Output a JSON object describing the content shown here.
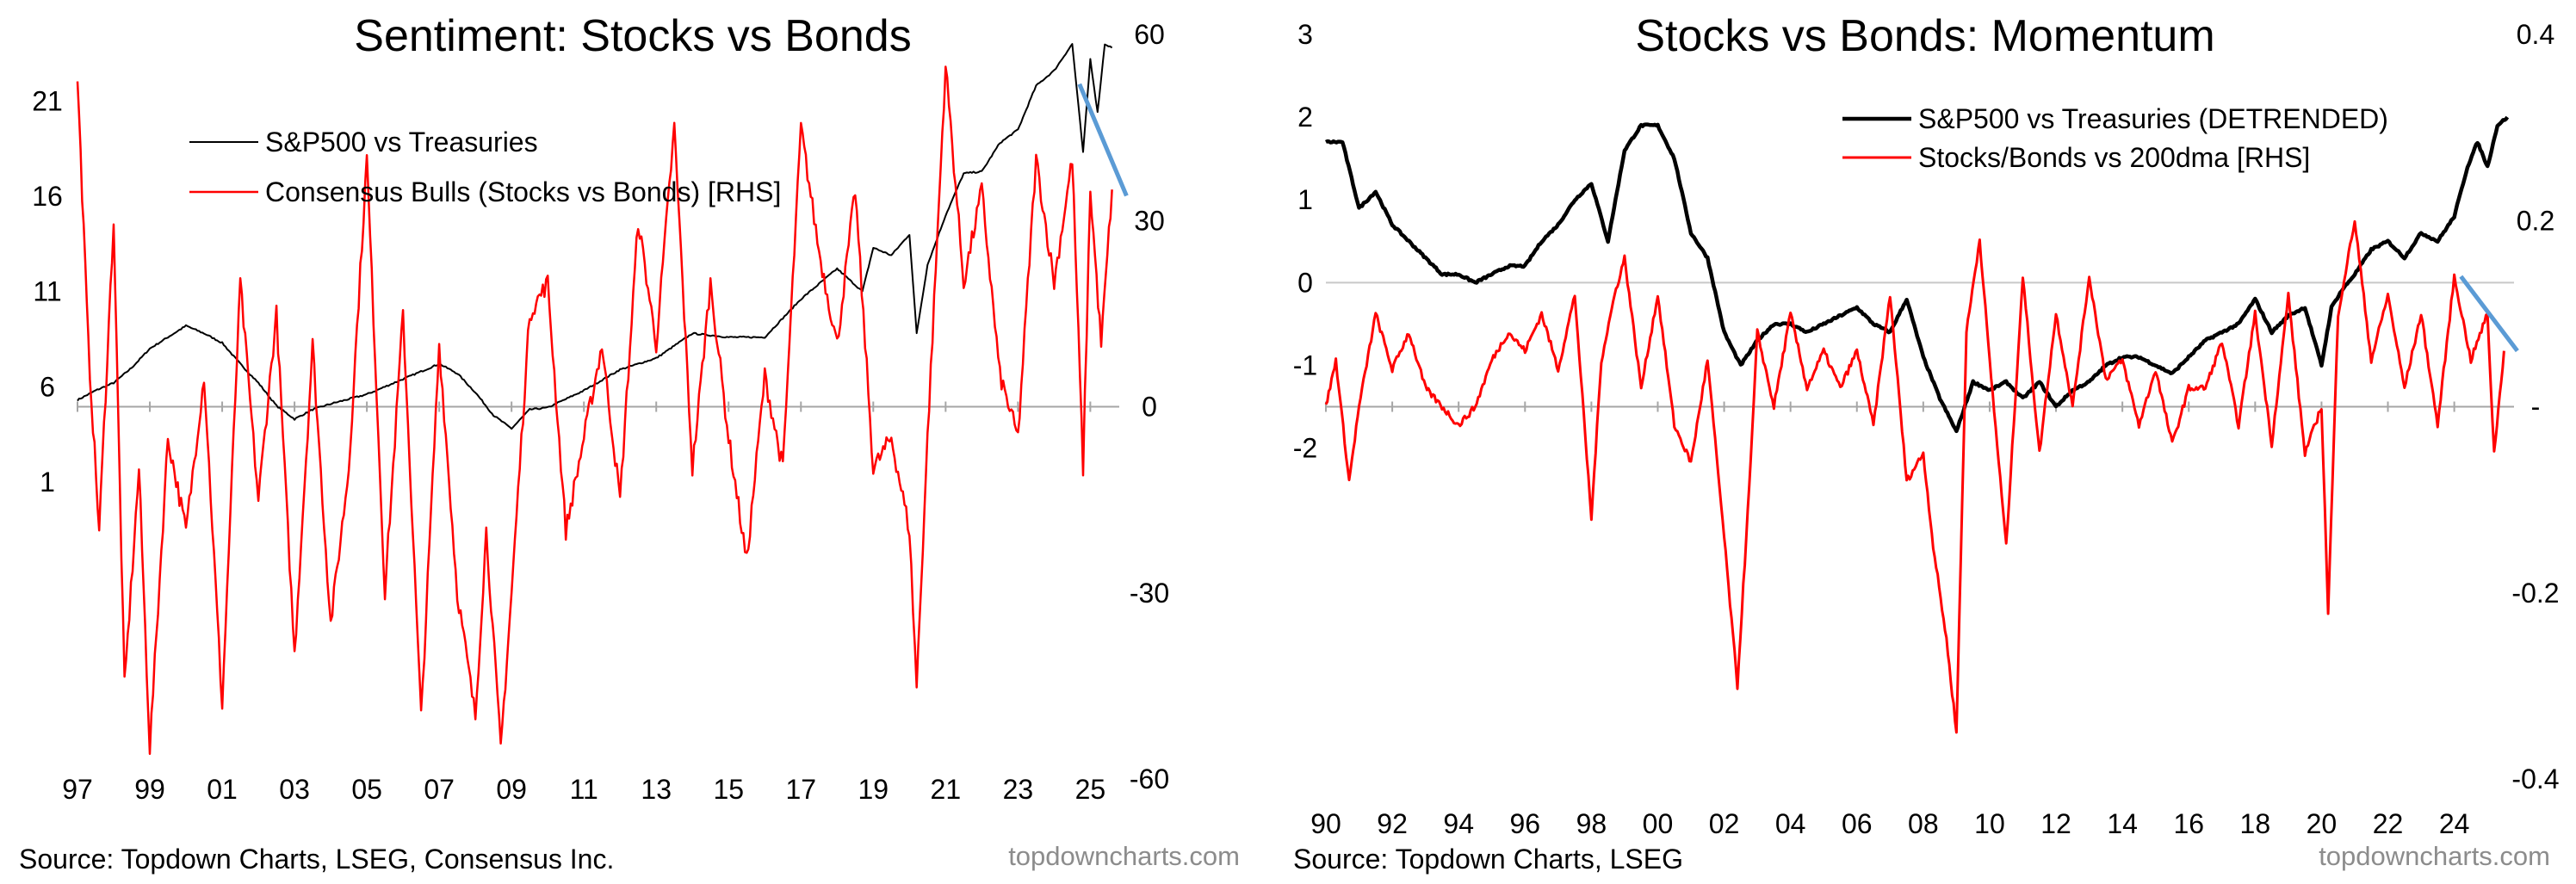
{
  "chart_data": [
    {
      "type": "line",
      "title": "Sentiment: Stocks vs Bonds",
      "source": "Source: Topdown Charts, LSEG, Consensus Inc.",
      "brand": "topdowncharts.com",
      "x_ticks": [
        "97",
        "99",
        "01",
        "03",
        "05",
        "07",
        "09",
        "11",
        "13",
        "15",
        "17",
        "19",
        "21",
        "23",
        "25"
      ],
      "xlim": [
        1997,
        2025.8
      ],
      "left_axis": {
        "ticks": [
          "21",
          "16",
          "11",
          "6",
          "1"
        ],
        "values": [
          21,
          16,
          11,
          6,
          1
        ],
        "ylim": [
          -14.6,
          24.5
        ]
      },
      "right_axis": {
        "ticks": [
          "60",
          "30",
          "0",
          "-30",
          "-60"
        ],
        "values": [
          60,
          30,
          0,
          -30,
          -60
        ],
        "ylim": [
          -60,
          60
        ],
        "zero_line": true
      },
      "legend": {
        "placement": "top-left"
      },
      "series": [
        {
          "name": "S&P500 vs Treasuries",
          "axis": "left",
          "color": "#000000",
          "kind": "level",
          "x": [
            1997,
            1997.5,
            1998,
            1998.5,
            1999,
            1999.5,
            2000,
            2000.5,
            2001,
            2001.5,
            2002,
            2002.5,
            2003,
            2003.5,
            2004,
            2005,
            2006,
            2007,
            2007.5,
            2008,
            2008.5,
            2009,
            2009.5,
            2010,
            2011,
            2012,
            2013,
            2014,
            2015,
            2016,
            2016.5,
            2017,
            2018,
            2018.7,
            2019,
            2019.5,
            2020,
            2020.2,
            2020.5,
            2021,
            2021.5,
            2022,
            2022.5,
            2023,
            2023.5,
            2024,
            2024.5,
            2024.8,
            2025,
            2025.2,
            2025.4,
            2025.6
          ],
          "y": [
            5.3,
            5.8,
            6.2,
            7.0,
            8.0,
            8.6,
            9.2,
            8.8,
            8.3,
            7.2,
            6.2,
            5.0,
            4.3,
            4.8,
            5.1,
            5.6,
            6.4,
            7.2,
            6.7,
            5.7,
            4.5,
            3.8,
            4.8,
            4.9,
            5.8,
            6.9,
            7.5,
            8.8,
            8.6,
            8.6,
            9.6,
            10.6,
            12.2,
            11.0,
            13.3,
            12.9,
            14.0,
            8.8,
            12.4,
            15.0,
            17.2,
            17.3,
            18.8,
            19.5,
            21.8,
            22.6,
            24.0,
            18.3,
            23.2,
            20.4,
            24.0,
            23.8
          ]
        },
        {
          "name": "Consensus Bulls (Stocks vs Bonds) [RHS]",
          "axis": "right",
          "color": "#ff0000",
          "kind": "oscillator",
          "x": [
            1997,
            1997.3,
            1997.6,
            1998,
            1998.3,
            1998.7,
            1999,
            1999.5,
            2000,
            2000.5,
            2001,
            2001.5,
            2002,
            2002.5,
            2003,
            2003.5,
            2004,
            2004.5,
            2005,
            2005.5,
            2006,
            2006.5,
            2007,
            2007.5,
            2008,
            2008.3,
            2008.7,
            2009,
            2009.5,
            2010,
            2010.5,
            2011,
            2011.5,
            2012,
            2012.5,
            2013,
            2013.5,
            2014,
            2014.5,
            2015,
            2015.5,
            2016,
            2016.5,
            2017,
            2017.5,
            2018,
            2018.5,
            2019,
            2019.5,
            2020,
            2020.2,
            2020.5,
            2021,
            2021.5,
            2022,
            2022.5,
            2023,
            2023.5,
            2024,
            2024.5,
            2024.8,
            2025,
            2025.3,
            2025.6
          ],
          "y": [
            53,
            10,
            -20,
            30,
            -45,
            -10,
            -55,
            -5,
            -20,
            5,
            -48,
            20,
            -15,
            15,
            -40,
            10,
            -35,
            -10,
            40,
            -30,
            15,
            -50,
            10,
            -30,
            -50,
            -20,
            -55,
            -30,
            15,
            20,
            -20,
            -5,
            10,
            -15,
            30,
            10,
            45,
            -10,
            20,
            -5,
            -25,
            5,
            -10,
            45,
            25,
            10,
            35,
            -10,
            -5,
            -20,
            -45,
            -5,
            55,
            20,
            35,
            5,
            -5,
            40,
            20,
            40,
            -10,
            35,
            10,
            35
          ]
        }
      ],
      "annotations": [
        {
          "type": "trend-line",
          "color": "#5b9bd5",
          "x": [
            2024.7,
            2026.0
          ],
          "y": [
            52,
            34
          ],
          "axis": "right"
        }
      ]
    },
    {
      "type": "line",
      "title": "Stocks vs Bonds: Momentum",
      "source": "Source: Topdown Charts, LSEG",
      "brand": "topdowncharts.com",
      "x_ticks": [
        "90",
        "92",
        "94",
        "96",
        "98",
        "00",
        "02",
        "04",
        "06",
        "08",
        "10",
        "12",
        "14",
        "16",
        "18",
        "20",
        "22",
        "24"
      ],
      "xlim": [
        1990,
        2025.8
      ],
      "left_axis": {
        "ticks": [
          "3",
          "2",
          "1",
          "0",
          "-1",
          "-2"
        ],
        "values": [
          3,
          2,
          1,
          0,
          -1,
          -2
        ],
        "ylim": [
          -6.0,
          3.0
        ]
      },
      "right_axis": {
        "ticks": [
          "0.4",
          "0.2",
          "-",
          "-0.2",
          "-0.4"
        ],
        "values": [
          0.4,
          0.2,
          0,
          -0.2,
          -0.4
        ],
        "ylim": [
          -0.4,
          0.4
        ],
        "zero_line": true
      },
      "left_zero_line": true,
      "legend": {
        "placement": "top-right"
      },
      "series": [
        {
          "name": "S&P500 vs Treasuries (DETRENDED)",
          "axis": "left",
          "color": "#000000",
          "kind": "level",
          "x": [
            1990,
            1990.5,
            1991,
            1991.5,
            1992,
            1992.5,
            1993,
            1993.5,
            1994,
            1994.5,
            1995,
            1995.5,
            1996,
            1996.5,
            1997,
            1997.5,
            1998,
            1998.5,
            1999,
            1999.5,
            2000,
            2000.5,
            2001,
            2001.5,
            2002,
            2002.5,
            2003,
            2003.5,
            2004,
            2004.5,
            2005,
            2005.5,
            2006,
            2006.5,
            2007,
            2007.5,
            2008,
            2008.5,
            2009,
            2009.5,
            2010,
            2010.5,
            2011,
            2011.5,
            2012,
            2012.5,
            2013,
            2013.5,
            2014,
            2014.5,
            2015,
            2015.5,
            2016,
            2016.5,
            2017,
            2017.5,
            2018,
            2018.5,
            2019,
            2019.5,
            2020,
            2020.3,
            2020.6,
            2021,
            2021.5,
            2022,
            2022.5,
            2023,
            2023.5,
            2024,
            2024.4,
            2024.7,
            2025,
            2025.3,
            2025.6
          ],
          "y": [
            1.7,
            1.7,
            0.9,
            1.1,
            0.7,
            0.5,
            0.3,
            0.1,
            0.1,
            0.0,
            0.1,
            0.2,
            0.2,
            0.5,
            0.7,
            1.0,
            1.2,
            0.5,
            1.6,
            1.9,
            1.9,
            1.5,
            0.6,
            0.3,
            -0.6,
            -1.0,
            -0.7,
            -0.5,
            -0.5,
            -0.6,
            -0.5,
            -0.4,
            -0.3,
            -0.5,
            -0.6,
            -0.2,
            -0.9,
            -1.4,
            -1.8,
            -1.2,
            -1.3,
            -1.2,
            -1.4,
            -1.2,
            -1.5,
            -1.3,
            -1.2,
            -1.0,
            -0.9,
            -0.9,
            -1.0,
            -1.1,
            -0.9,
            -0.7,
            -0.6,
            -0.5,
            -0.2,
            -0.6,
            -0.4,
            -0.3,
            -1.0,
            -0.3,
            -0.1,
            0.1,
            0.4,
            0.5,
            0.3,
            0.6,
            0.5,
            0.8,
            1.4,
            1.7,
            1.4,
            1.9,
            2.0
          ]
        },
        {
          "name": "Stocks/Bonds vs 200dma [RHS]",
          "axis": "right",
          "color": "#ff0000",
          "kind": "oscillator",
          "x": [
            1990,
            1990.3,
            1990.7,
            1991,
            1991.5,
            1992,
            1992.5,
            1993,
            1993.5,
            1994,
            1994.5,
            1995,
            1995.5,
            1996,
            1996.5,
            1997,
            1997.5,
            1998,
            1998.3,
            1998.7,
            1999,
            1999.5,
            2000,
            2000.5,
            2001,
            2001.5,
            2002,
            2002.4,
            2002.8,
            2003,
            2003.5,
            2004,
            2004.5,
            2005,
            2005.5,
            2006,
            2006.5,
            2007,
            2007.5,
            2008,
            2008.3,
            2008.7,
            2009,
            2009.3,
            2009.7,
            2010,
            2010.5,
            2011,
            2011.5,
            2012,
            2012.5,
            2013,
            2013.5,
            2014,
            2014.5,
            2015,
            2015.5,
            2016,
            2016.5,
            2017,
            2017.5,
            2018,
            2018.5,
            2019,
            2019.5,
            2020,
            2020.2,
            2020.5,
            2021,
            2021.5,
            2022,
            2022.5,
            2023,
            2023.5,
            2024,
            2024.5,
            2025,
            2025.2,
            2025.5
          ],
          "y": [
            0.0,
            0.05,
            -0.08,
            0.0,
            0.1,
            0.04,
            0.08,
            0.02,
            0.0,
            -0.02,
            0.0,
            0.05,
            0.08,
            0.06,
            0.1,
            0.04,
            0.12,
            -0.12,
            0.05,
            0.12,
            0.16,
            0.02,
            0.12,
            -0.02,
            -0.06,
            0.05,
            -0.14,
            -0.3,
            -0.06,
            0.08,
            0.0,
            0.1,
            0.02,
            0.06,
            0.02,
            0.06,
            -0.02,
            0.12,
            -0.08,
            -0.05,
            -0.15,
            -0.25,
            -0.35,
            0.08,
            0.18,
            0.05,
            -0.15,
            0.14,
            -0.05,
            0.1,
            0.0,
            0.14,
            0.03,
            0.05,
            -0.02,
            0.04,
            -0.04,
            0.02,
            0.02,
            0.07,
            -0.02,
            0.1,
            -0.04,
            0.12,
            -0.05,
            0.0,
            -0.22,
            0.1,
            0.2,
            0.05,
            0.12,
            0.02,
            0.1,
            -0.02,
            0.14,
            0.05,
            0.1,
            -0.05,
            0.06
          ]
        }
      ],
      "annotations": [
        {
          "type": "trend-line",
          "color": "#5b9bd5",
          "x": [
            2024.2,
            2025.9
          ],
          "y": [
            0.14,
            0.06
          ],
          "axis": "right"
        }
      ]
    }
  ]
}
